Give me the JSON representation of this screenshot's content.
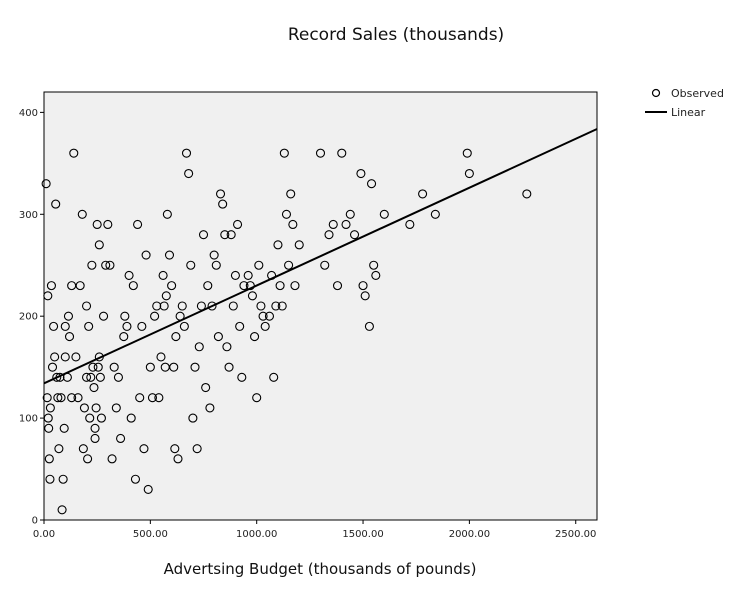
{
  "chart_data": {
    "type": "scatter",
    "title": "Record Sales (thousands)",
    "xlabel": "Advertsing Budget (thousands of pounds)",
    "ylabel": "",
    "xlim": [
      0,
      2600
    ],
    "ylim": [
      0,
      420
    ],
    "x_ticks": [
      "0.00",
      "500.00",
      "1000.00",
      "1500.00",
      "2000.00",
      "2500.00"
    ],
    "y_ticks": [
      "0",
      "100",
      "200",
      "300",
      "400"
    ],
    "grid": false,
    "legend": {
      "position": "top-right",
      "entries": [
        "Observed",
        "Linear"
      ]
    },
    "fit_line": {
      "intercept": 134.1,
      "slope": 0.096
    },
    "series": [
      {
        "name": "Observed",
        "marker": "open-circle",
        "points": [
          [
            10,
            330
          ],
          [
            18,
            220
          ],
          [
            20,
            100
          ],
          [
            22,
            90
          ],
          [
            25,
            60
          ],
          [
            28,
            40
          ],
          [
            30,
            110
          ],
          [
            15,
            120
          ],
          [
            35,
            230
          ],
          [
            40,
            150
          ],
          [
            45,
            190
          ],
          [
            50,
            160
          ],
          [
            55,
            310
          ],
          [
            60,
            140
          ],
          [
            65,
            120
          ],
          [
            70,
            70
          ],
          [
            75,
            140
          ],
          [
            80,
            120
          ],
          [
            85,
            10
          ],
          [
            90,
            40
          ],
          [
            95,
            90
          ],
          [
            100,
            190
          ],
          [
            100,
            160
          ],
          [
            110,
            140
          ],
          [
            115,
            200
          ],
          [
            120,
            180
          ],
          [
            130,
            230
          ],
          [
            130,
            120
          ],
          [
            140,
            360
          ],
          [
            150,
            160
          ],
          [
            160,
            120
          ],
          [
            170,
            230
          ],
          [
            180,
            300
          ],
          [
            185,
            70
          ],
          [
            190,
            110
          ],
          [
            200,
            210
          ],
          [
            200,
            140
          ],
          [
            205,
            60
          ],
          [
            210,
            190
          ],
          [
            215,
            100
          ],
          [
            220,
            140
          ],
          [
            225,
            250
          ],
          [
            230,
            150
          ],
          [
            235,
            130
          ],
          [
            240,
            90
          ],
          [
            240,
            80
          ],
          [
            245,
            110
          ],
          [
            250,
            290
          ],
          [
            255,
            150
          ],
          [
            260,
            270
          ],
          [
            260,
            160
          ],
          [
            265,
            140
          ],
          [
            270,
            100
          ],
          [
            280,
            200
          ],
          [
            290,
            250
          ],
          [
            300,
            290
          ],
          [
            310,
            250
          ],
          [
            320,
            60
          ],
          [
            330,
            150
          ],
          [
            340,
            110
          ],
          [
            350,
            140
          ],
          [
            360,
            80
          ],
          [
            375,
            180
          ],
          [
            380,
            200
          ],
          [
            390,
            190
          ],
          [
            400,
            240
          ],
          [
            410,
            100
          ],
          [
            420,
            230
          ],
          [
            430,
            40
          ],
          [
            440,
            290
          ],
          [
            450,
            120
          ],
          [
            460,
            190
          ],
          [
            470,
            70
          ],
          [
            480,
            260
          ],
          [
            490,
            30
          ],
          [
            500,
            150
          ],
          [
            510,
            120
          ],
          [
            520,
            200
          ],
          [
            530,
            210
          ],
          [
            540,
            120
          ],
          [
            550,
            160
          ],
          [
            560,
            240
          ],
          [
            565,
            210
          ],
          [
            570,
            150
          ],
          [
            575,
            220
          ],
          [
            580,
            300
          ],
          [
            590,
            260
          ],
          [
            600,
            230
          ],
          [
            610,
            150
          ],
          [
            615,
            70
          ],
          [
            620,
            180
          ],
          [
            630,
            60
          ],
          [
            640,
            200
          ],
          [
            650,
            210
          ],
          [
            660,
            190
          ],
          [
            670,
            360
          ],
          [
            680,
            340
          ],
          [
            690,
            250
          ],
          [
            700,
            100
          ],
          [
            710,
            150
          ],
          [
            720,
            70
          ],
          [
            730,
            170
          ],
          [
            740,
            210
          ],
          [
            750,
            280
          ],
          [
            760,
            130
          ],
          [
            770,
            230
          ],
          [
            780,
            110
          ],
          [
            790,
            210
          ],
          [
            800,
            260
          ],
          [
            810,
            250
          ],
          [
            820,
            180
          ],
          [
            830,
            320
          ],
          [
            840,
            310
          ],
          [
            850,
            280
          ],
          [
            860,
            170
          ],
          [
            870,
            150
          ],
          [
            880,
            280
          ],
          [
            890,
            210
          ],
          [
            900,
            240
          ],
          [
            910,
            290
          ],
          [
            920,
            190
          ],
          [
            930,
            140
          ],
          [
            940,
            230
          ],
          [
            960,
            240
          ],
          [
            970,
            230
          ],
          [
            980,
            220
          ],
          [
            990,
            180
          ],
          [
            1000,
            120
          ],
          [
            1010,
            250
          ],
          [
            1020,
            210
          ],
          [
            1030,
            200
          ],
          [
            1040,
            190
          ],
          [
            1060,
            200
          ],
          [
            1070,
            240
          ],
          [
            1080,
            140
          ],
          [
            1090,
            210
          ],
          [
            1100,
            270
          ],
          [
            1110,
            230
          ],
          [
            1120,
            210
          ],
          [
            1130,
            360
          ],
          [
            1140,
            300
          ],
          [
            1150,
            250
          ],
          [
            1160,
            320
          ],
          [
            1170,
            290
          ],
          [
            1180,
            230
          ],
          [
            1200,
            270
          ],
          [
            1300,
            360
          ],
          [
            1320,
            250
          ],
          [
            1340,
            280
          ],
          [
            1360,
            290
          ],
          [
            1380,
            230
          ],
          [
            1400,
            360
          ],
          [
            1420,
            290
          ],
          [
            1440,
            300
          ],
          [
            1460,
            280
          ],
          [
            1490,
            340
          ],
          [
            1500,
            230
          ],
          [
            1510,
            220
          ],
          [
            1530,
            190
          ],
          [
            1540,
            330
          ],
          [
            1550,
            250
          ],
          [
            1560,
            240
          ],
          [
            1600,
            300
          ],
          [
            1720,
            290
          ],
          [
            1780,
            320
          ],
          [
            1840,
            300
          ],
          [
            1990,
            360
          ],
          [
            2000,
            340
          ],
          [
            2270,
            320
          ]
        ]
      }
    ]
  }
}
